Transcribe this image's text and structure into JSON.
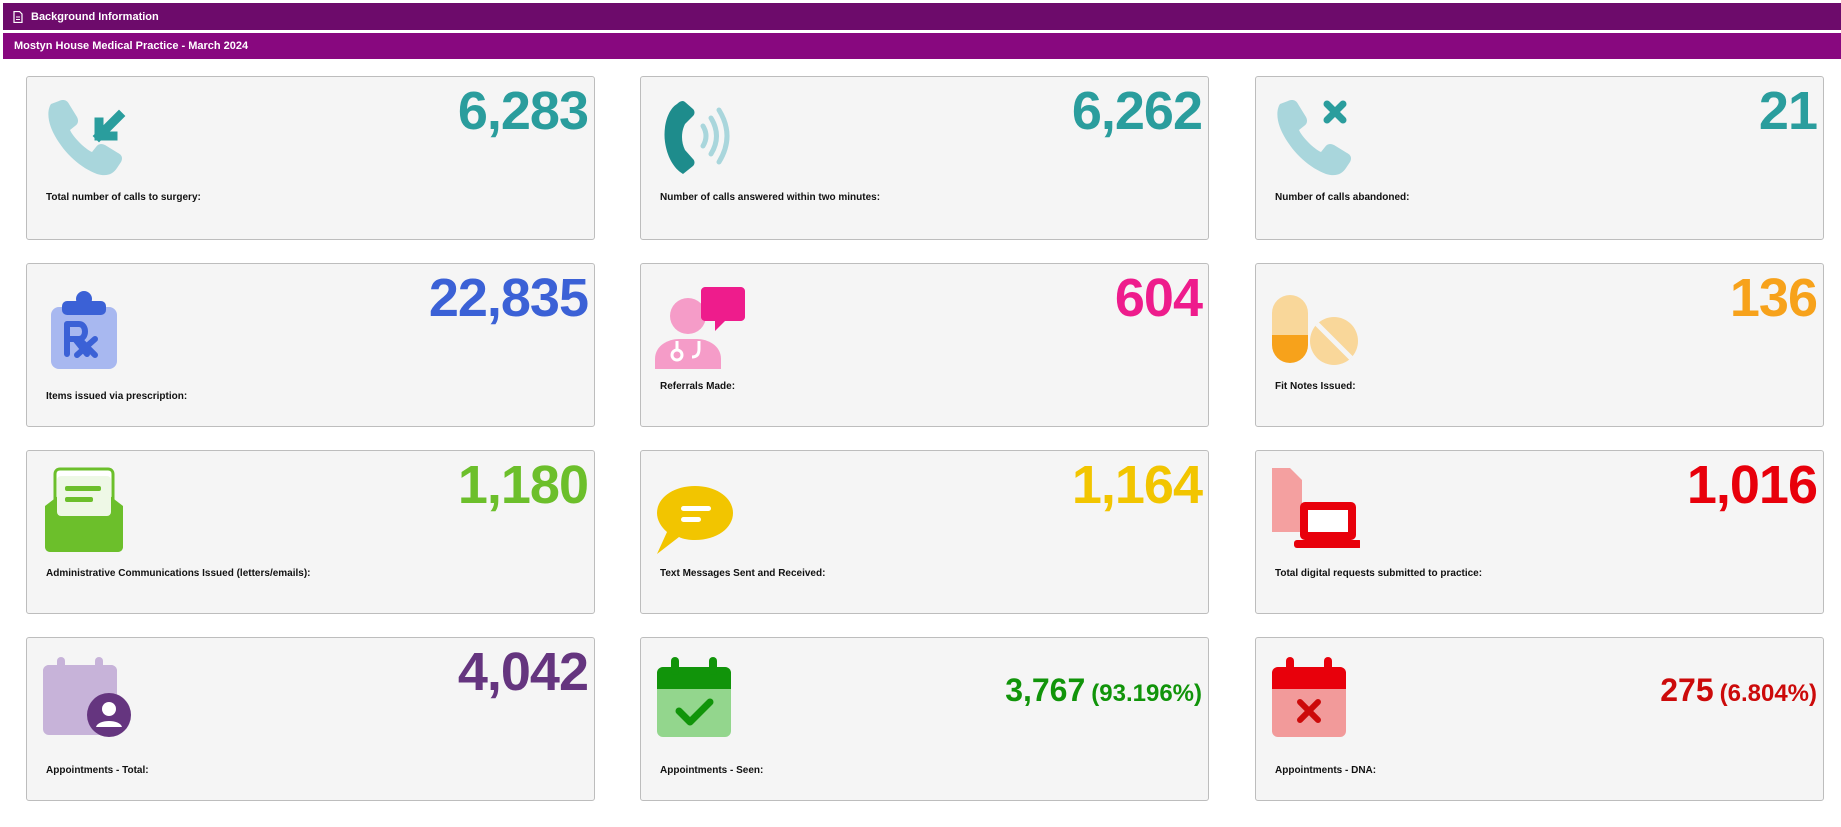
{
  "header": {
    "title": "Background Information",
    "subtitle": "Mostyn House Medical Practice - March 2024"
  },
  "cards": [
    {
      "value": "6,283",
      "label": "Total number of calls to surgery:",
      "icon": "phone-incoming-icon",
      "color": "#2a9d9d"
    },
    {
      "value": "6,262",
      "label": "Number of calls answered within two minutes:",
      "icon": "phone-ringing-icon",
      "color": "#2a9d9d"
    },
    {
      "value": "21",
      "label": "Number of calls abandoned:",
      "icon": "phone-missed-icon",
      "color": "#2a9d9d"
    },
    {
      "value": "22,835",
      "label": "Items issued via prescription:",
      "icon": "prescription-clipboard-icon",
      "color": "#3b61d6"
    },
    {
      "value": "604",
      "label": "Referrals Made:",
      "icon": "doctor-chat-icon",
      "color": "#ee1c8c"
    },
    {
      "value": "136",
      "label": "Fit Notes Issued:",
      "icon": "pills-icon",
      "color": "#f7a21b"
    },
    {
      "value": "1,180",
      "label": "Administrative Communications Issued (letters/emails):",
      "icon": "envelope-open-icon",
      "color": "#6cbf2b"
    },
    {
      "value": "1,164",
      "label": "Text Messages Sent and Received:",
      "icon": "speech-bubble-icon",
      "color": "#f2c500"
    },
    {
      "value": "1,016",
      "label": "Total digital requests submitted to practice:",
      "icon": "laptop-document-icon",
      "color": "#e8000b"
    },
    {
      "value": "4,042",
      "label": "Appointments - Total:",
      "icon": "calendar-user-icon",
      "color": "#65357f"
    },
    {
      "value": "3,767",
      "pct": "(93.196%)",
      "label": "Appointments - Seen:",
      "icon": "calendar-check-icon",
      "color": "#11940a"
    },
    {
      "value": "275",
      "pct": "(6.804%)",
      "label": "Appointments - DNA:",
      "icon": "calendar-x-icon",
      "color": "#cc0a0a"
    }
  ]
}
